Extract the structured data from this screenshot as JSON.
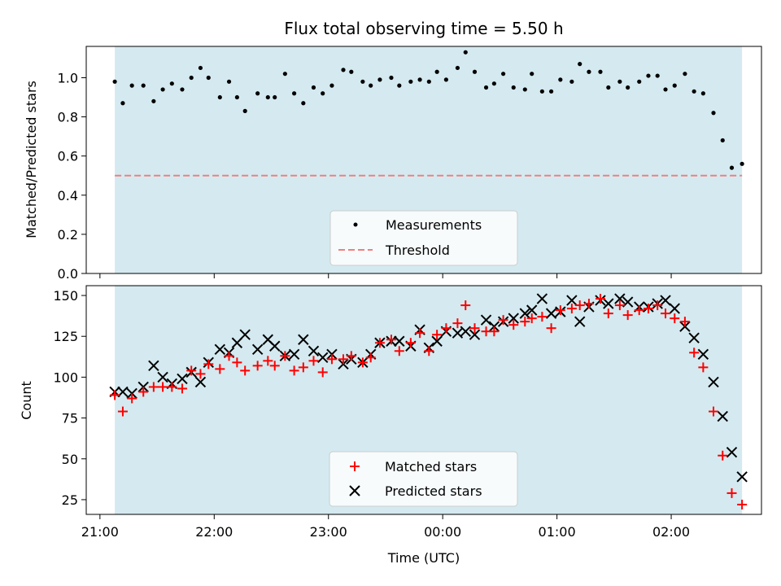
{
  "chart_data": {
    "title": "Flux total observing time = 5.50 h",
    "xlabel": "Time (UTC)",
    "x_ticks": [
      "21:00",
      "22:00",
      "23:00",
      "00:00",
      "01:00",
      "02:00"
    ],
    "x_ticks_hours": [
      21.0,
      22.0,
      23.0,
      24.0,
      25.0,
      26.0
    ],
    "xlim_hours": [
      20.88,
      26.79
    ],
    "shaded_span_hours": [
      21.13,
      26.62
    ],
    "colors": {
      "shade": "#d4eaf0",
      "threshold": "#f07f80",
      "matched": "#ff0000",
      "predicted": "#000000",
      "measurements": "#000000"
    },
    "panels": [
      {
        "type": "scatter",
        "ylabel": "Matched/Predicted stars",
        "ylim": [
          0,
          1.16
        ],
        "yticks": [
          "0.0",
          "0.2",
          "0.4",
          "0.6",
          "0.8",
          "1.0"
        ],
        "ytick_values": [
          0,
          0.2,
          0.4,
          0.6,
          0.8,
          1.0
        ],
        "legend_position": "lower-center",
        "threshold": {
          "name": "Threshold",
          "value": 0.5
        },
        "series": [
          {
            "name": "Measurements",
            "marker": "dot",
            "x_hours": [
              21.13,
              21.2,
              21.28,
              21.38,
              21.47,
              21.55,
              21.63,
              21.72,
              21.8,
              21.88,
              21.95,
              22.05,
              22.13,
              22.2,
              22.27,
              22.38,
              22.47,
              22.53,
              22.62,
              22.7,
              22.78,
              22.87,
              22.95,
              23.03,
              23.13,
              23.2,
              23.3,
              23.37,
              23.45,
              23.55,
              23.62,
              23.72,
              23.8,
              23.88,
              23.95,
              24.03,
              24.13,
              24.2,
              24.28,
              24.38,
              24.45,
              24.53,
              24.62,
              24.72,
              24.78,
              24.87,
              24.95,
              25.03,
              25.13,
              25.2,
              25.28,
              25.38,
              25.45,
              25.55,
              25.62,
              25.72,
              25.8,
              25.88,
              25.95,
              26.03,
              26.12,
              26.2,
              26.28,
              26.37,
              26.45,
              26.53,
              26.62
            ],
            "y": [
              0.98,
              0.87,
              0.96,
              0.96,
              0.88,
              0.94,
              0.97,
              0.94,
              1.0,
              1.05,
              1.0,
              0.9,
              0.98,
              0.9,
              0.83,
              0.92,
              0.9,
              0.9,
              1.02,
              0.92,
              0.87,
              0.95,
              0.92,
              0.96,
              1.04,
              1.03,
              0.98,
              0.96,
              0.99,
              1.0,
              0.96,
              0.98,
              0.99,
              0.98,
              1.03,
              0.99,
              1.05,
              1.13,
              1.03,
              0.95,
              0.97,
              1.02,
              0.95,
              0.94,
              1.02,
              0.93,
              0.93,
              0.99,
              0.98,
              1.07,
              1.03,
              1.03,
              0.95,
              0.98,
              0.95,
              0.98,
              1.01,
              1.01,
              0.94,
              0.96,
              1.02,
              0.93,
              0.92,
              0.82,
              0.68,
              0.54,
              0.56
            ]
          }
        ]
      },
      {
        "type": "scatter",
        "ylabel": "Count",
        "ylim": [
          16,
          156
        ],
        "yticks": [
          "25",
          "50",
          "75",
          "100",
          "125",
          "150"
        ],
        "ytick_values": [
          25,
          50,
          75,
          100,
          125,
          150
        ],
        "legend_position": "lower-center",
        "series": [
          {
            "name": "Matched stars",
            "marker": "plus",
            "x_hours": [
              21.13,
              21.2,
              21.28,
              21.38,
              21.47,
              21.55,
              21.63,
              21.72,
              21.8,
              21.88,
              21.95,
              22.05,
              22.13,
              22.2,
              22.27,
              22.38,
              22.47,
              22.53,
              22.62,
              22.7,
              22.78,
              22.87,
              22.95,
              23.03,
              23.13,
              23.2,
              23.3,
              23.37,
              23.45,
              23.55,
              23.62,
              23.72,
              23.8,
              23.88,
              23.95,
              24.03,
              24.13,
              24.2,
              24.28,
              24.38,
              24.45,
              24.53,
              24.62,
              24.72,
              24.78,
              24.87,
              24.95,
              25.03,
              25.13,
              25.2,
              25.28,
              25.38,
              25.45,
              25.55,
              25.62,
              25.72,
              25.8,
              25.88,
              25.95,
              26.03,
              26.12,
              26.2,
              26.28,
              26.37,
              26.45,
              26.53,
              26.62
            ],
            "y": [
              89,
              79,
              87,
              91,
              94,
              94,
              94,
              93,
              104,
              102,
              108,
              105,
              113,
              109,
              104,
              107,
              110,
              107,
              113,
              104,
              106,
              110,
              103,
              111,
              111,
              113,
              109,
              112,
              121,
              123,
              116,
              121,
              127,
              116,
              126,
              130,
              133,
              144,
              130,
              128,
              128,
              135,
              132,
              134,
              136,
              137,
              130,
              141,
              142,
              144,
              145,
              148,
              139,
              144,
              138,
              141,
              142,
              144,
              139,
              136,
              134,
              115,
              106,
              79,
              52,
              29,
              22
            ]
          },
          {
            "name": "Predicted stars",
            "marker": "cross",
            "x_hours": [
              21.13,
              21.2,
              21.28,
              21.38,
              21.47,
              21.55,
              21.63,
              21.72,
              21.8,
              21.88,
              21.95,
              22.05,
              22.13,
              22.2,
              22.27,
              22.38,
              22.47,
              22.53,
              22.62,
              22.7,
              22.78,
              22.87,
              22.95,
              23.03,
              23.13,
              23.2,
              23.3,
              23.37,
              23.45,
              23.55,
              23.62,
              23.72,
              23.8,
              23.88,
              23.95,
              24.03,
              24.13,
              24.2,
              24.28,
              24.38,
              24.45,
              24.53,
              24.62,
              24.72,
              24.78,
              24.87,
              24.95,
              25.03,
              25.13,
              25.2,
              25.28,
              25.38,
              25.45,
              25.55,
              25.62,
              25.72,
              25.8,
              25.88,
              25.95,
              26.03,
              26.12,
              26.2,
              26.28,
              26.37,
              26.45,
              26.53,
              26.62
            ],
            "y": [
              91,
              91,
              90,
              94,
              107,
              100,
              96,
              99,
              103,
              97,
              109,
              117,
              115,
              121,
              126,
              117,
              123,
              119,
              113,
              114,
              123,
              116,
              112,
              114,
              108,
              111,
              109,
              114,
              121,
              122,
              122,
              119,
              129,
              118,
              122,
              128,
              127,
              128,
              126,
              135,
              131,
              134,
              136,
              139,
              141,
              148,
              139,
              140,
              147,
              134,
              143,
              147,
              145,
              148,
              146,
              143,
              143,
              145,
              147,
              142,
              131,
              124,
              114,
              97,
              76,
              54,
              39
            ]
          }
        ]
      }
    ]
  }
}
